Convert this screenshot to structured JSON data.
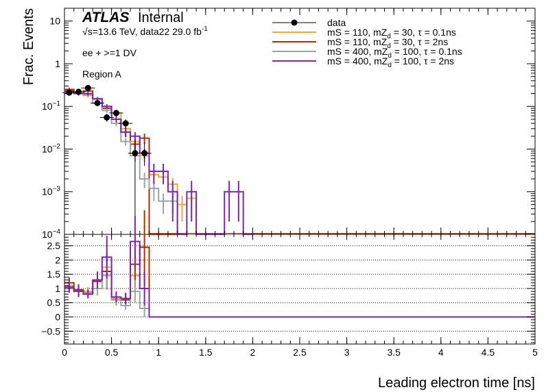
{
  "chart_data": [
    {
      "type": "line",
      "xlabel": "Leading electron time [ns]",
      "ylabel": "Frac. Events",
      "xlim": [
        0,
        5
      ],
      "ylim": [
        0.0001,
        20
      ],
      "yscale": "log",
      "grid": false,
      "legend_position": "top-right",
      "bin_edges": [
        0,
        0.1,
        0.2,
        0.3,
        0.4,
        0.5,
        0.6,
        0.7,
        0.8,
        0.9,
        1.0,
        1.1,
        1.2,
        1.3,
        1.4,
        1.5,
        1.6,
        1.7,
        1.8,
        1.9,
        2.0
      ],
      "yticks": [
        {
          "value": 0.0001,
          "base": "10",
          "exp": "−4"
        },
        {
          "value": 0.001,
          "base": "10",
          "exp": "−3"
        },
        {
          "value": 0.01,
          "base": "10",
          "exp": "−2"
        },
        {
          "value": 0.1,
          "base": "10",
          "exp": "−1"
        },
        {
          "value": 1,
          "base": "1",
          "exp": ""
        },
        {
          "value": 10,
          "base": "10",
          "exp": ""
        }
      ],
      "annotations": {
        "atlas": "ATLAS",
        "internal": "Internal",
        "energy_prefix": "s=13.6 TeV, data22 29.0 fb",
        "energy_sup": "-1",
        "sqrt_symbol": "√",
        "selection": "ee + >=1 DV",
        "region": "Region A"
      },
      "data": {
        "name": "data",
        "x": [
          0.05,
          0.15,
          0.25,
          0.35,
          0.45,
          0.55,
          0.65,
          0.75,
          0.85
        ],
        "y": [
          0.21,
          0.22,
          0.27,
          0.12,
          0.055,
          0.07,
          0.04,
          0.008,
          0.008
        ],
        "yerr_low": [
          0.02,
          0.02,
          0.025,
          0.015,
          0.012,
          0.013,
          0.01,
          0.0079,
          0.004
        ],
        "yerr_high": [
          0.02,
          0.02,
          0.025,
          0.015,
          0.012,
          0.013,
          0.01,
          0.008,
          0.006
        ],
        "color": "#000000"
      },
      "series": [
        {
          "name_parts": [
            "mS = 110, mZ",
            "d",
            " = 30, τ = 0.1ns"
          ],
          "color": "#f5a623",
          "values": [
            0.24,
            0.2,
            0.18,
            0.15,
            0.1,
            0.07,
            0.03,
            0.015,
            0.007,
            0.0025,
            0.0022,
            0.0015,
            0.0005,
            0.0007,
            0,
            0,
            0,
            0,
            0,
            0
          ],
          "errors": [
            0.02,
            0.02,
            0.02,
            0.015,
            0.012,
            0.01,
            0.006,
            0.004,
            0.002,
            0.0008,
            0.0007,
            0.0006,
            0.0003,
            0.0004,
            0,
            0,
            0,
            0,
            0,
            0
          ]
        },
        {
          "name_parts": [
            "mS = 110, mZ",
            "d",
            " = 30, τ = 2ns"
          ],
          "color": "#b22a00",
          "values": [
            0.25,
            0.2,
            0.23,
            0.15,
            0.09,
            0.05,
            0.025,
            0.013,
            0.018,
            0,
            0,
            0,
            0,
            0,
            0,
            0,
            0,
            0,
            0,
            0
          ],
          "errors": [
            0.025,
            0.02,
            0.02,
            0.015,
            0.012,
            0.008,
            0.006,
            0.004,
            0.005,
            0,
            0,
            0,
            0,
            0,
            0,
            0,
            0,
            0,
            0,
            0
          ],
          "drop_to_floor_after_bin": 8
        },
        {
          "name_parts": [
            "mS = 400, mZ",
            "d",
            " = 100, τ = 0.1ns"
          ],
          "color": "#9aa5a5",
          "values": [
            0.22,
            0.2,
            0.19,
            0.12,
            0.08,
            0.04,
            0.015,
            0.007,
            0.002,
            0.0012,
            0.0006,
            0.0006,
            0,
            0,
            0,
            0,
            0,
            0,
            0,
            0
          ],
          "errors": [
            0.02,
            0.02,
            0.02,
            0.012,
            0.01,
            0.006,
            0.003,
            0.002,
            0.0008,
            0.0006,
            0.0003,
            0.0003,
            0,
            0,
            0,
            0,
            0,
            0,
            0,
            0
          ]
        },
        {
          "name_parts": [
            "mS = 400, mZ",
            "d",
            " = 100, τ = 2ns"
          ],
          "color": "#7b25b0",
          "values": [
            0.23,
            0.2,
            0.2,
            0.15,
            0.1,
            0.05,
            0.025,
            0.02,
            0.008,
            0.003,
            0.003,
            0.001,
            0.0001,
            0.001,
            0.0001,
            0.0001,
            0.0001,
            0.001,
            0.001,
            0.0001
          ],
          "errors": [
            0.02,
            0.02,
            0.02,
            0.015,
            0.012,
            0.008,
            0.006,
            0.005,
            0.002,
            0.0015,
            0.0015,
            0.0008,
            0,
            0.0008,
            0,
            0,
            0,
            0.0008,
            0.0008,
            0
          ]
        }
      ]
    },
    {
      "type": "line",
      "xlabel": "Leading electron time [ns]",
      "xlim": [
        0,
        5
      ],
      "ylim": [
        -0.95,
        2.9
      ],
      "grid": true,
      "xticks": [
        0,
        0.5,
        1,
        1.5,
        2,
        2.5,
        3,
        3.5,
        4,
        4.5,
        5
      ],
      "xtick_labels": [
        "0",
        "0.5",
        "1",
        "1.5",
        "2",
        "2.5",
        "3",
        "3.5",
        "4",
        "4.5",
        "5"
      ],
      "yticks": [
        -0.5,
        0,
        0.5,
        1,
        1.5,
        2,
        2.5
      ],
      "ytick_labels": [
        "−0.5",
        "0",
        "0.5",
        "1",
        "1.5",
        "2",
        "2.5"
      ],
      "bin_edges": [
        0,
        0.1,
        0.2,
        0.3,
        0.4,
        0.5,
        0.6,
        0.7,
        0.8,
        0.9,
        5.0
      ],
      "series": [
        {
          "name_parts": [
            "mS = 110, mZ",
            "d",
            " = 30, τ = 0.1ns"
          ],
          "color": "#f5a623",
          "values": [
            1.1,
            0.95,
            0.9,
            1.25,
            1.75,
            0.65,
            0.65,
            1.45,
            1.0,
            0
          ],
          "errors": [
            0.2,
            0.2,
            0.15,
            0.3,
            0.6,
            0.2,
            0.2,
            0.6,
            0.5,
            0
          ]
        },
        {
          "name_parts": [
            "mS = 110, mZ",
            "d",
            " = 30, τ = 2ns"
          ],
          "color": "#b22a00",
          "values": [
            1.2,
            0.95,
            0.85,
            1.25,
            1.6,
            0.6,
            0.6,
            1.85,
            2.45,
            0
          ],
          "errors": [
            0.2,
            0.2,
            0.15,
            0.3,
            0.6,
            0.2,
            0.2,
            0.8,
            1.3,
            0
          ]
        },
        {
          "name_parts": [
            "mS = 400, mZ",
            "d",
            " = 100, τ = 0.1ns"
          ],
          "color": "#9aa5a5",
          "values": [
            1.05,
            0.9,
            0.85,
            1.0,
            1.45,
            0.6,
            0.4,
            0.9,
            0.3,
            0
          ],
          "errors": [
            0.2,
            0.2,
            0.15,
            0.25,
            0.5,
            0.2,
            0.15,
            0.4,
            0.3,
            0
          ]
        },
        {
          "name_parts": [
            "mS = 400, mZ",
            "d",
            " = 100, τ = 2ns"
          ],
          "color": "#7b25b0",
          "values": [
            1.05,
            0.9,
            0.8,
            1.3,
            2.1,
            0.7,
            0.65,
            2.65,
            1.0,
            0
          ],
          "errors": [
            0.2,
            0.2,
            0.15,
            0.3,
            0.75,
            0.2,
            0.2,
            0.9,
            0.6,
            0
          ]
        }
      ]
    }
  ]
}
